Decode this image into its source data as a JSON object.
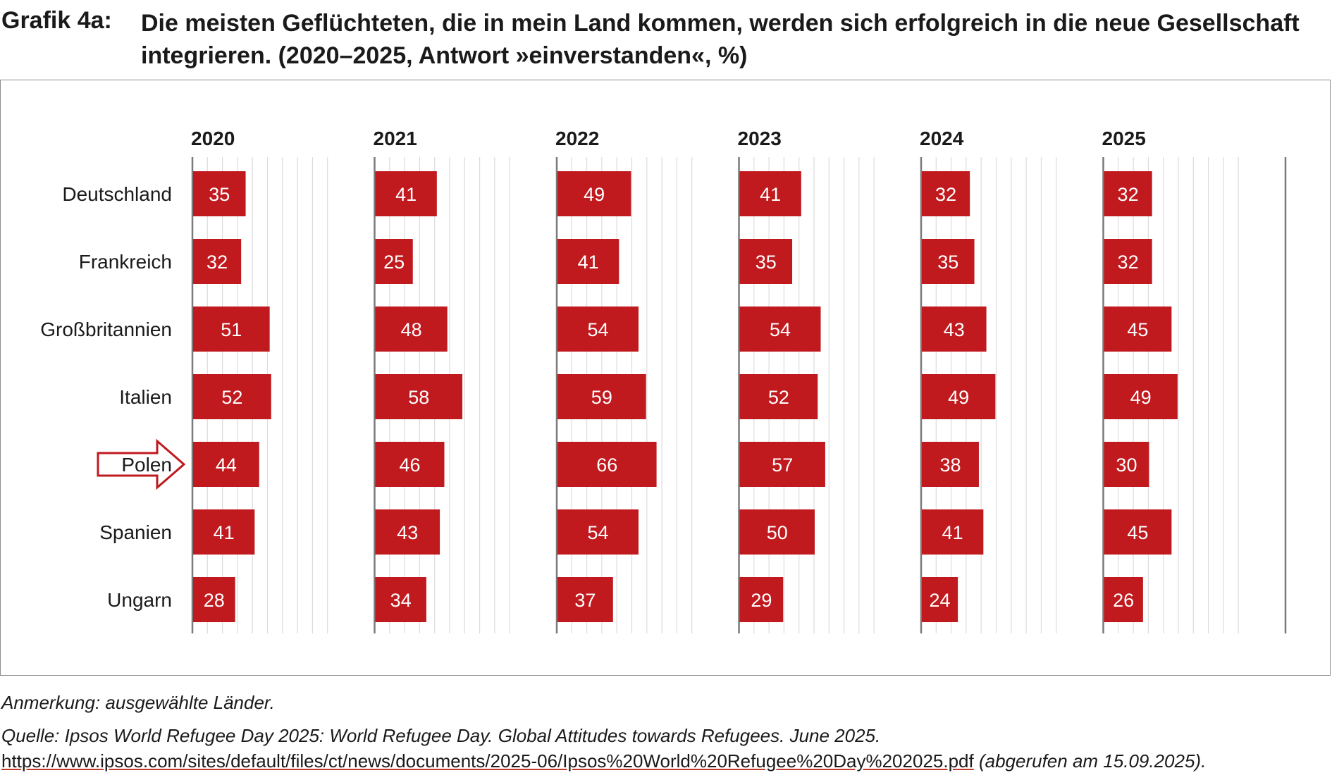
{
  "title": {
    "label": "Grafik 4a:",
    "text": "Die meisten Geflüchteten, die in mein Land kommen, werden sich erfolgreich in die neue Gesellschaft integrieren. (2020–2025, Antwort »einverstanden«, %)"
  },
  "note": "Anmerkung: ausgewählte Länder.",
  "source": {
    "text": "Quelle: Ipsos World Refugee Day 2025: World Refugee Day. Global Attitudes towards Refugees. June 2025.",
    "url": "https://www.ipsos.com/sites/default/files/ct/news/documents/2025-06/Ipsos%20World%20Refugee%20Day%202025.pdf",
    "accessed": "(abgerufen am 15.09.2025)."
  },
  "highlight": {
    "category": "Polen",
    "icon": "arrow-right-icon"
  },
  "colors": {
    "bar": "#c0191e",
    "axis": "#7a7a7a",
    "grid": "#dcdcdc",
    "arrow": "#c0191e"
  },
  "chart_data": {
    "type": "bar",
    "orientation": "horizontal",
    "title": "Die meisten Geflüchteten, die in mein Land kommen, werden sich erfolgreich in die neue Gesellschaft integrieren.",
    "unit": "%",
    "categories": [
      "Deutschland",
      "Frankreich",
      "Großbritannien",
      "Italien",
      "Polen",
      "Spanien",
      "Ungarn"
    ],
    "series": [
      {
        "name": "2020",
        "values": [
          35,
          32,
          51,
          52,
          44,
          41,
          28
        ]
      },
      {
        "name": "2021",
        "values": [
          41,
          25,
          48,
          58,
          46,
          43,
          34
        ]
      },
      {
        "name": "2022",
        "values": [
          49,
          41,
          54,
          59,
          66,
          54,
          37
        ]
      },
      {
        "name": "2023",
        "values": [
          41,
          35,
          54,
          52,
          57,
          50,
          29
        ]
      },
      {
        "name": "2024",
        "values": [
          32,
          35,
          43,
          49,
          38,
          41,
          24
        ]
      },
      {
        "name": "2025",
        "values": [
          32,
          32,
          45,
          49,
          30,
          45,
          26
        ]
      }
    ],
    "xlim": [
      0,
      100
    ],
    "grid": true,
    "legend": "none"
  }
}
